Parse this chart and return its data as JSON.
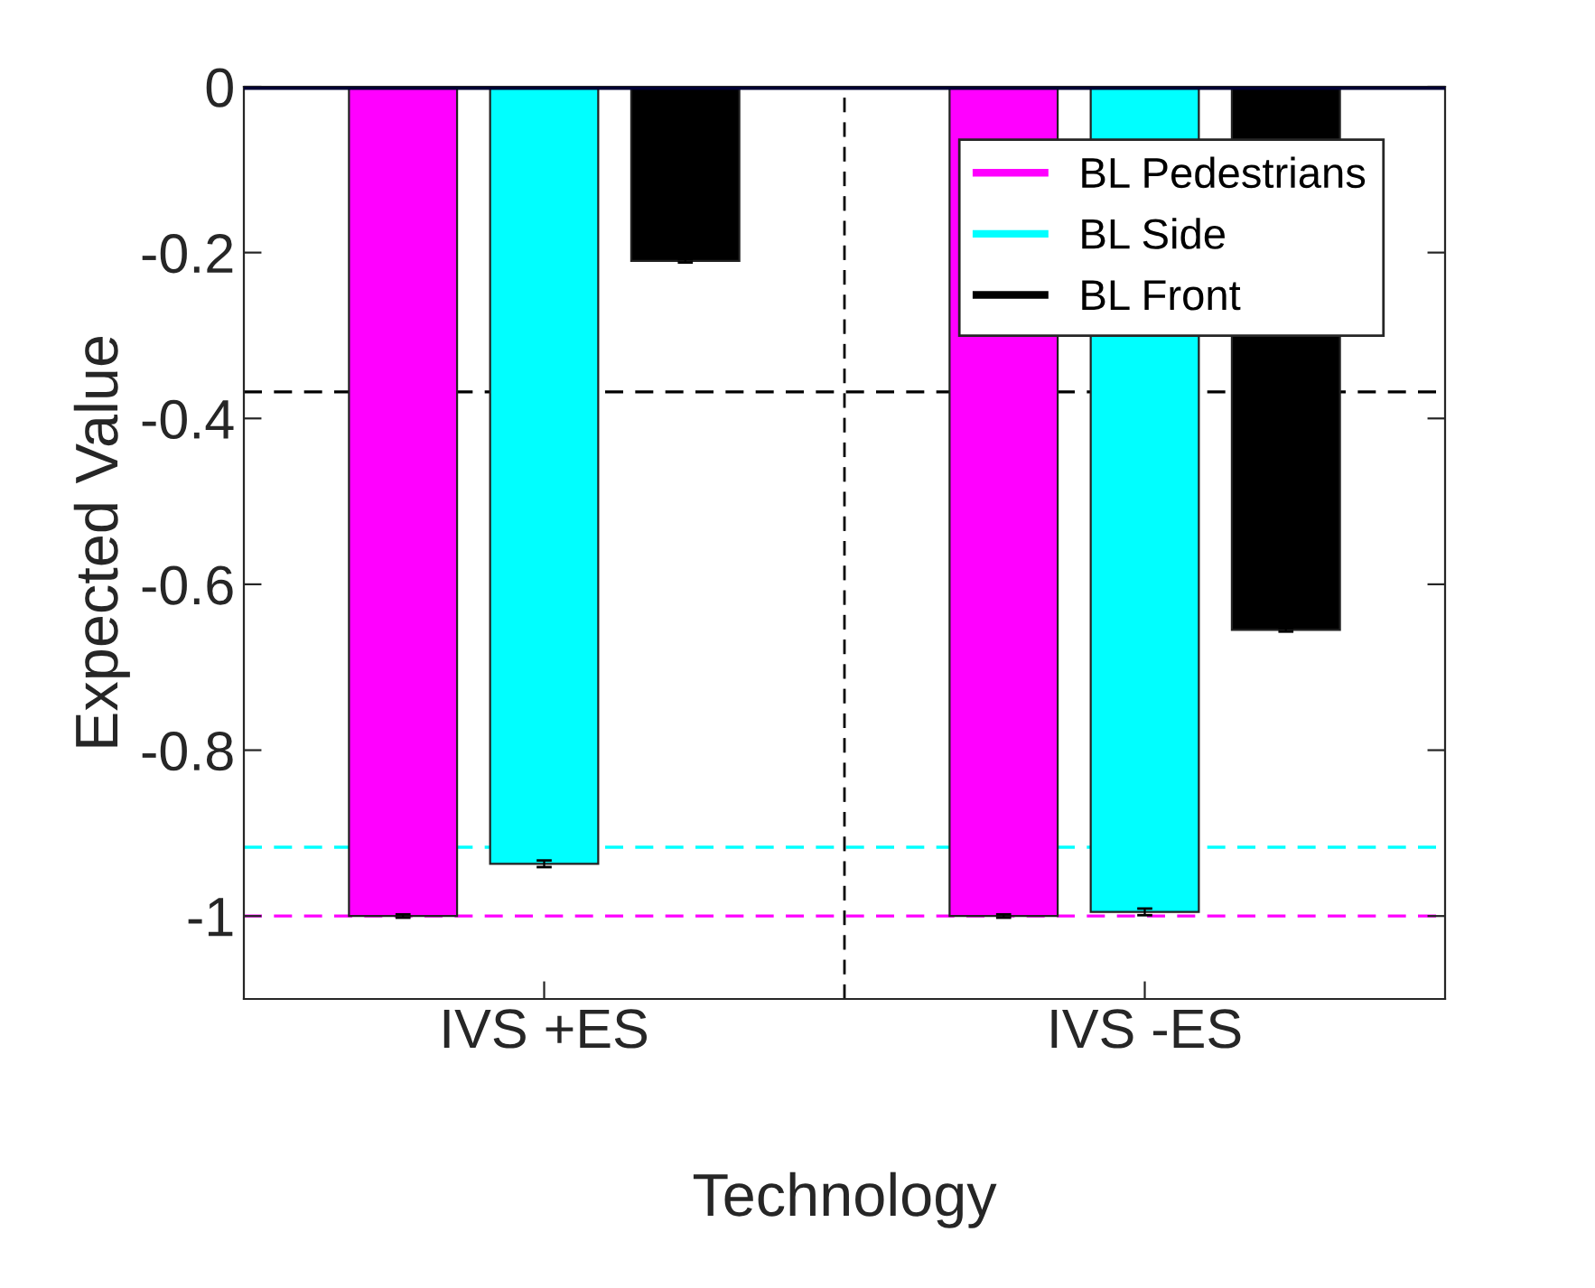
{
  "chart_data": {
    "type": "bar",
    "xlabel": "Technology",
    "ylabel": "Expected Value",
    "categories": [
      "IVS +ES",
      "IVS -ES"
    ],
    "series": [
      {
        "name": "BL Pedestrians",
        "color": "#ff00ff",
        "values": [
          -1.0,
          -1.0
        ],
        "errors": [
          0.002,
          0.002
        ]
      },
      {
        "name": "BL Side",
        "color": "#00ffff",
        "values": [
          -0.937,
          -0.995
        ],
        "errors": [
          0.004,
          0.004
        ]
      },
      {
        "name": "BL Front",
        "color": "#000000",
        "values": [
          -0.21,
          -0.655
        ],
        "errors": [
          0.002,
          0.002
        ]
      }
    ],
    "ylim": [
      -1.1,
      0
    ],
    "yticks": [
      -1,
      -0.8,
      -0.6,
      -0.4,
      -0.2,
      0
    ],
    "ref_lines": [
      {
        "axis": "y",
        "value": 0,
        "color": "#000033",
        "line_style": "solid"
      },
      {
        "axis": "y",
        "value": -0.368,
        "color": "#000000",
        "line_style": "dashed"
      },
      {
        "axis": "y",
        "value": -0.917,
        "color": "#00ffff",
        "line_style": "dashed"
      },
      {
        "axis": "y",
        "value": -1.0,
        "color": "#ff00ff",
        "line_style": "dashed"
      }
    ],
    "legend": "top right",
    "grid": false
  }
}
